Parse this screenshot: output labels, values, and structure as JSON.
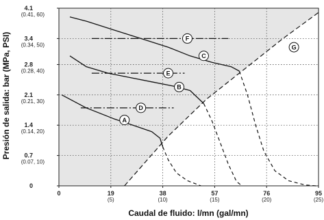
{
  "chart_data": {
    "type": "line",
    "title": "",
    "xlabel": "Caudal de fluido: l/mn (gal/mn)",
    "ylabel": "Presión de salida: bar (MPa, PSI)",
    "xlim": [
      0,
      95
    ],
    "ylim": [
      0,
      4.1
    ],
    "grid": true,
    "x_ticks": [
      {
        "value": 0,
        "label": "0",
        "sub": ""
      },
      {
        "value": 19,
        "label": "19",
        "sub": "(5)"
      },
      {
        "value": 38,
        "label": "38",
        "sub": "(10)"
      },
      {
        "value": 57,
        "label": "57",
        "sub": "(15)"
      },
      {
        "value": 76,
        "label": "76",
        "sub": "(20)"
      },
      {
        "value": 95,
        "label": "95",
        "sub": "(25)"
      }
    ],
    "y_ticks": [
      {
        "value": 0,
        "label": "0",
        "sub": ""
      },
      {
        "value": 0.7,
        "label": "0.7",
        "sub": "(0.07, 10)"
      },
      {
        "value": 1.4,
        "label": "1.4",
        "sub": "(0.14, 20)"
      },
      {
        "value": 2.1,
        "label": "2.1",
        "sub": "(0.21, 30)"
      },
      {
        "value": 2.8,
        "label": "2.8",
        "sub": "(0.28, 40)"
      },
      {
        "value": 3.4,
        "label": "3.4",
        "sub": "(0.34, 50)"
      },
      {
        "value": 4.1,
        "label": "4.1",
        "sub": "(0.41, 60)"
      }
    ],
    "series": [
      {
        "name": "A",
        "solid": [
          [
            1,
            2.1
          ],
          [
            10,
            1.8
          ],
          [
            20,
            1.55
          ],
          [
            28,
            1.38
          ],
          [
            34,
            1.25
          ],
          [
            37,
            1.1
          ],
          [
            38,
            0.9
          ]
        ],
        "dashed": [
          [
            38,
            0.9
          ],
          [
            40,
            0.6
          ],
          [
            43,
            0.3
          ],
          [
            47,
            0.12
          ],
          [
            52,
            0
          ]
        ]
      },
      {
        "name": "B",
        "solid": [
          [
            4,
            3.0
          ],
          [
            10,
            2.75
          ],
          [
            18,
            2.6
          ],
          [
            26,
            2.5
          ],
          [
            34,
            2.4
          ],
          [
            42,
            2.3
          ],
          [
            48,
            2.2
          ],
          [
            53,
            1.9
          ]
        ],
        "dashed": [
          [
            53,
            1.9
          ],
          [
            56,
            1.5
          ],
          [
            59,
            1.0
          ],
          [
            62,
            0.5
          ],
          [
            65,
            0.1
          ],
          [
            67,
            0
          ]
        ]
      },
      {
        "name": "C",
        "solid": [
          [
            4,
            3.9
          ],
          [
            10,
            3.8
          ],
          [
            20,
            3.6
          ],
          [
            30,
            3.4
          ],
          [
            40,
            3.2
          ],
          [
            48,
            3.0
          ],
          [
            56,
            2.85
          ],
          [
            63,
            2.75
          ],
          [
            66,
            2.65
          ]
        ],
        "dashed": [
          [
            66,
            2.65
          ],
          [
            69,
            2.1
          ],
          [
            72,
            1.4
          ],
          [
            75,
            0.8
          ],
          [
            79,
            0.35
          ],
          [
            84,
            0.12
          ],
          [
            90,
            0.02
          ],
          [
            94,
            0
          ]
        ]
      },
      {
        "name": "D",
        "dashdot": [
          [
            8,
            1.8
          ],
          [
            42,
            1.8
          ]
        ]
      },
      {
        "name": "E",
        "dashdot": [
          [
            12,
            2.6
          ],
          [
            46,
            2.6
          ]
        ]
      },
      {
        "name": "F",
        "dashdot": [
          [
            12,
            3.4
          ],
          [
            62,
            3.4
          ]
        ]
      },
      {
        "name": "G",
        "boundary": [
          [
            24,
            0
          ],
          [
            40,
            1.15
          ],
          [
            54,
            2.0
          ],
          [
            68,
            2.7
          ],
          [
            82,
            3.4
          ],
          [
            95,
            4.0
          ]
        ]
      }
    ],
    "callouts": [
      {
        "label": "A",
        "at": [
          24,
          1.52
        ]
      },
      {
        "label": "B",
        "at": [
          44,
          2.28
        ]
      },
      {
        "label": "C",
        "at": [
          53,
          3.0
        ]
      },
      {
        "label": "D",
        "at": [
          30,
          1.8
        ]
      },
      {
        "label": "E",
        "at": [
          40,
          2.6
        ]
      },
      {
        "label": "F",
        "at": [
          47,
          3.4
        ]
      },
      {
        "label": "G",
        "at": [
          86,
          3.2
        ]
      }
    ]
  }
}
